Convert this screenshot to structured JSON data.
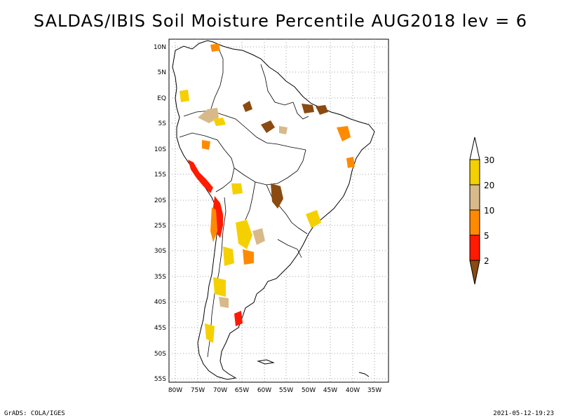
{
  "title": "SALDAS/IBIS Soil Moisture Percentile AUG2018 lev = 6",
  "footer": {
    "left": "GrADS: COLA/IGES",
    "right": "2021-05-12-19:23"
  },
  "map": {
    "lat_ticks": [
      "10N",
      "5N",
      "EQ",
      "5S",
      "10S",
      "15S",
      "20S",
      "25S",
      "30S",
      "35S",
      "40S",
      "45S",
      "50S",
      "55S"
    ],
    "lon_ticks": [
      "80W",
      "75W",
      "70W",
      "65W",
      "60W",
      "55W",
      "50W",
      "45W",
      "40W",
      "35W"
    ],
    "lat_range": [
      -56,
      12
    ],
    "lon_range": [
      -81,
      -33
    ],
    "gridlines": true
  },
  "colorbar": {
    "levels": [
      "30",
      "20",
      "10",
      "5",
      "2"
    ],
    "colors": {
      "above30": "#ffffff",
      "c20_30": "#f5d000",
      "c10_20": "#d8b98a",
      "c5_10": "#ff8a00",
      "c2_5": "#ff1a00",
      "below2": "#8a4a10"
    }
  }
}
